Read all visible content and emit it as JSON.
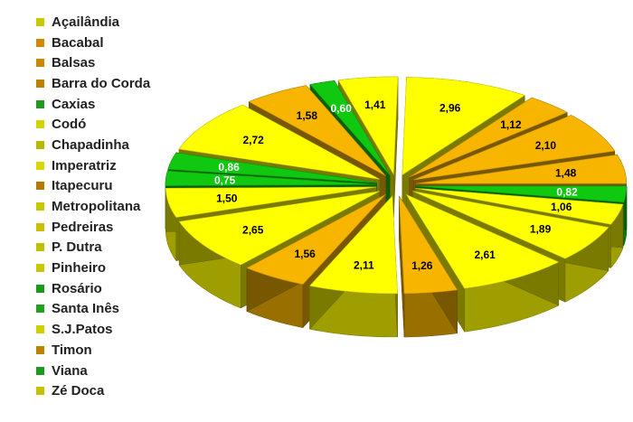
{
  "chart_data": {
    "type": "pie",
    "style": "exploded-3d",
    "legend_position": "left",
    "categories": [
      "Açailândia",
      "Bacabal",
      "Balsas",
      "Barra do Corda",
      "Caxias",
      "Codó",
      "Chapadinha",
      "Imperatriz",
      "Itapecuru",
      "Metropolitana",
      "Pedreiras",
      "P. Dutra",
      "Pinheiro",
      "Rosário",
      "Santa Inês",
      "S.J.Patos",
      "Timon",
      "Viana",
      "Zé Doca"
    ],
    "legend_colors": [
      "#c9c900",
      "#d08a00",
      "#c98a00",
      "#c08000",
      "#1e9a1e",
      "#d4d400",
      "#b8b800",
      "#d8d800",
      "#b87800",
      "#c8c800",
      "#c8c000",
      "#c0c000",
      "#c8c800",
      "#1a9a1a",
      "#22a022",
      "#d0d000",
      "#c08000",
      "#1e9a1e",
      "#c8c000"
    ],
    "slices": [
      {
        "label": "2,96",
        "value": 2.96,
        "color": "#ffff00"
      },
      {
        "label": "1,12",
        "value": 1.12,
        "color": "#f7b500"
      },
      {
        "label": "2,10",
        "value": 2.1,
        "color": "#f7b500"
      },
      {
        "label": "1,48",
        "value": 1.48,
        "color": "#f7b500"
      },
      {
        "label": "0,82",
        "value": 0.82,
        "color": "#0fc80f"
      },
      {
        "label": "1,06",
        "value": 1.06,
        "color": "#ffff00"
      },
      {
        "label": "1,89",
        "value": 1.89,
        "color": "#ffff00"
      },
      {
        "label": "2,61",
        "value": 2.61,
        "color": "#ffff00"
      },
      {
        "label": "1,26",
        "value": 1.26,
        "color": "#f7b500"
      },
      {
        "label": "2,11",
        "value": 2.11,
        "color": "#ffff00"
      },
      {
        "label": "1,56",
        "value": 1.56,
        "color": "#f7b500"
      },
      {
        "label": "2,65",
        "value": 2.65,
        "color": "#ffff00"
      },
      {
        "label": "1,50",
        "value": 1.5,
        "color": "#ffff00"
      },
      {
        "label": "0,75",
        "value": 0.75,
        "color": "#0fc80f"
      },
      {
        "label": "0,86",
        "value": 0.86,
        "color": "#0fc80f"
      },
      {
        "label": "2,72",
        "value": 2.72,
        "color": "#ffff00"
      },
      {
        "label": "1,58",
        "value": 1.58,
        "color": "#f7b500"
      },
      {
        "label": "0,60",
        "value": 0.6,
        "color": "#0fc80f"
      },
      {
        "label": "1,41",
        "value": 1.41,
        "color": "#ffff00"
      }
    ]
  }
}
